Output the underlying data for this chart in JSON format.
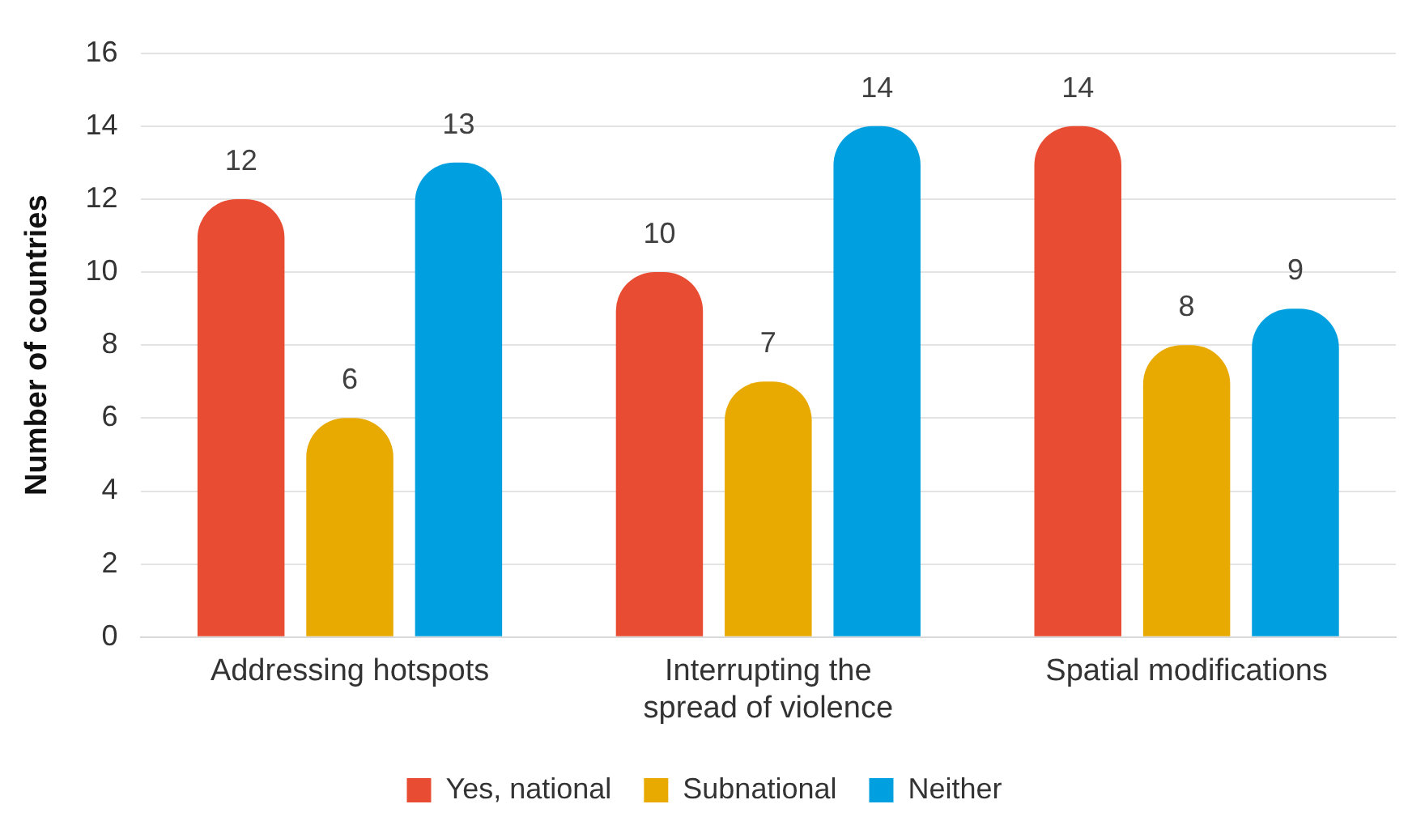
{
  "chart_data": {
    "type": "bar",
    "ylabel": "Number of countries",
    "categories": [
      "Addressing hotspots",
      "Interrupting the spread of violence",
      "Spatial modifications"
    ],
    "series": [
      {
        "name": "Yes, national",
        "color": "#e84c33",
        "values": [
          12,
          10,
          14
        ]
      },
      {
        "name": "Subnational",
        "color": "#e8a900",
        "values": [
          6,
          7,
          8
        ]
      },
      {
        "name": "Neither",
        "color": "#00a0e0",
        "values": [
          13,
          14,
          9
        ]
      }
    ],
    "ylim": [
      0,
      16
    ],
    "yticks": [
      0,
      2,
      4,
      6,
      8,
      10,
      12,
      14,
      16
    ],
    "grid": "y",
    "legend": "bottom",
    "data_labels": true
  }
}
